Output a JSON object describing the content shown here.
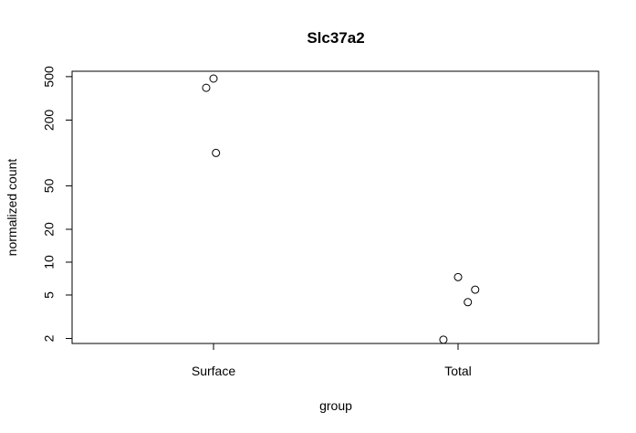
{
  "chart_data": {
    "type": "scatter",
    "title": "Slc37a2",
    "xlabel": "group",
    "ylabel": "normalized count",
    "y_scale": "log",
    "ylim": [
      1.8,
      560
    ],
    "categories": [
      "Surface",
      "Total"
    ],
    "y_ticks": [
      {
        "value": 2,
        "label": "2"
      },
      {
        "value": 5,
        "label": "5"
      },
      {
        "value": 10,
        "label": "10"
      },
      {
        "value": 20,
        "label": "20"
      },
      {
        "value": 50,
        "label": "50"
      },
      {
        "value": 200,
        "label": "200"
      },
      {
        "value": 500,
        "label": "500"
      }
    ],
    "points": [
      {
        "category": "Surface",
        "jitter": 0.0,
        "y": 480
      },
      {
        "category": "Surface",
        "jitter": -0.03,
        "y": 395
      },
      {
        "category": "Surface",
        "jitter": 0.01,
        "y": 100
      },
      {
        "category": "Total",
        "jitter": 0.0,
        "y": 7.3
      },
      {
        "category": "Total",
        "jitter": 0.07,
        "y": 5.6
      },
      {
        "category": "Total",
        "jitter": 0.04,
        "y": 4.3
      },
      {
        "category": "Total",
        "jitter": -0.06,
        "y": 1.95
      }
    ],
    "grid": false,
    "legend": "none"
  }
}
